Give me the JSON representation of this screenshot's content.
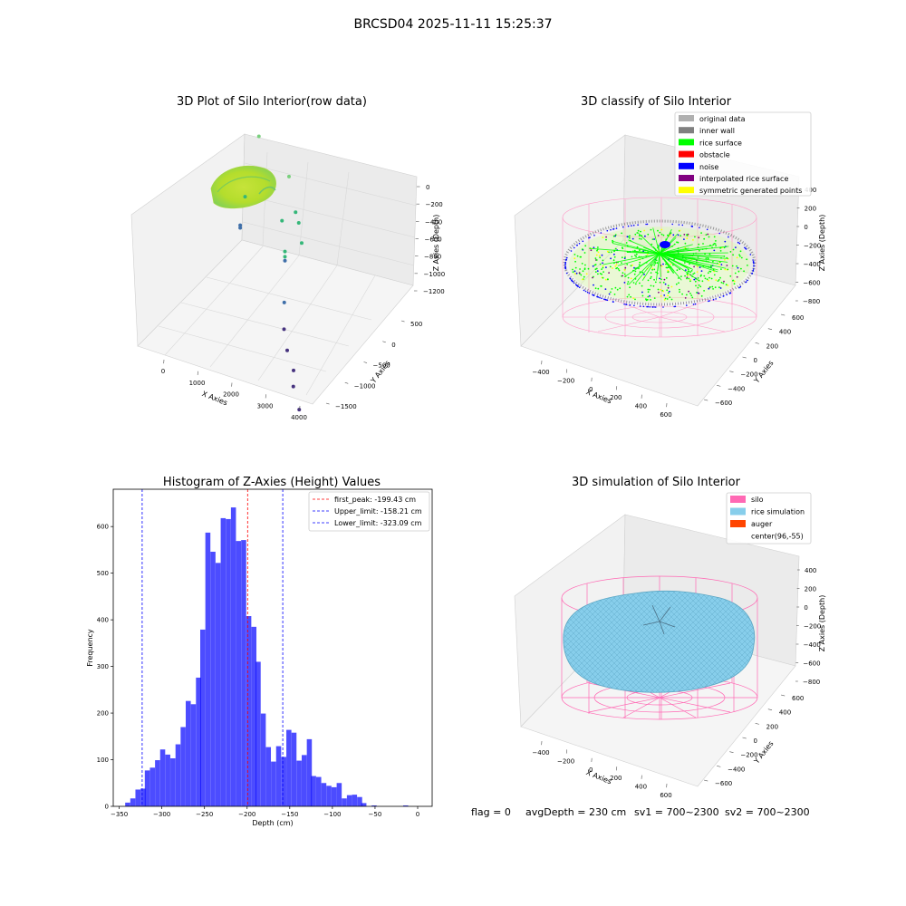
{
  "figure": {
    "suptitle": "BRCSD04 2025-11-11 15:25:37",
    "footer": {
      "flag": "flag = 0",
      "avg_depth": "avgDepth = 230 cm",
      "sv1": "sv1 = 700~2300",
      "sv2": "sv2 = 700~2300"
    }
  },
  "colors": {
    "hist_bar": "#0000ff",
    "peak_line": "#ff0000",
    "limit_line": "#0000ff",
    "silo_wire": "#ff69b4",
    "rice_sim": "#87ceeb",
    "auger": "#ff4500",
    "rice_surface": "#00ff00",
    "noise": "#0000ff",
    "inner_wall": "#808080",
    "original": "#b0b0b0",
    "interpolated": "#800080",
    "symmetric": "#ffff00"
  },
  "chart_data": [
    {
      "type": "scatter",
      "projection": "3d",
      "title": "3D Plot of Silo Interior(row data)",
      "xlabel": "X Axies",
      "ylabel": "Y Axies",
      "zlabel": "Z Axies (Depth)",
      "x_ticks": [
        "0",
        "1000",
        "2000",
        "3000",
        "4000"
      ],
      "y_ticks": [
        "500",
        "0",
        "−500",
        "−1000",
        "−1500"
      ],
      "z_ticks": [
        "0",
        "−200",
        "−400",
        "−600",
        "−800",
        "−1000",
        "−1200"
      ],
      "colormap": "viridis",
      "grid": true,
      "outliers": [
        {
          "x": 600,
          "y": 200,
          "z": -620
        },
        {
          "x": 350,
          "y": 300,
          "z": -900
        },
        {
          "x": 350,
          "y": 300,
          "z": -920
        },
        {
          "x": 900,
          "y": 300,
          "z": -180
        },
        {
          "x": 2000,
          "y": 100,
          "z": -300
        },
        {
          "x": 1900,
          "y": 0,
          "z": -600
        },
        {
          "x": 2300,
          "y": 0,
          "z": -500
        },
        {
          "x": 2500,
          "y": -100,
          "z": -520
        },
        {
          "x": 2200,
          "y": -200,
          "z": -720
        },
        {
          "x": 2200,
          "y": -200,
          "z": -760
        },
        {
          "x": 2200,
          "y": -200,
          "z": -790
        },
        {
          "x": 2800,
          "y": -300,
          "z": -560
        },
        {
          "x": 2500,
          "y": -500,
          "z": -950
        },
        {
          "x": 2600,
          "y": -600,
          "z": -1100
        },
        {
          "x": 2800,
          "y": -700,
          "z": -1200
        },
        {
          "x": 3200,
          "y": -900,
          "z": -1230
        },
        {
          "x": 3300,
          "y": -1000,
          "z": -1300
        },
        {
          "x": 3900,
          "y": -1400,
          "z": -1250
        }
      ]
    },
    {
      "type": "scatter",
      "projection": "3d",
      "title": "3D classify of Silo Interior",
      "xlabel": "X Axies",
      "ylabel": "Y Axies",
      "zlabel": "Z Axies (Depth)",
      "x_ticks": [
        "−400",
        "−200",
        "0",
        "200",
        "400",
        "600"
      ],
      "y_ticks": [
        "600",
        "400",
        "200",
        "0",
        "−200",
        "−400",
        "−600"
      ],
      "z_ticks": [
        "400",
        "200",
        "0",
        "−200",
        "−400",
        "−600",
        "−800"
      ],
      "legend_position": "upper right",
      "grid": true,
      "legend": [
        {
          "label": "original data",
          "color": "#b0b0b0"
        },
        {
          "label": "inner wall",
          "color": "#808080"
        },
        {
          "label": "rice surface",
          "color": "#00ff00"
        },
        {
          "label": "obstacle",
          "color": "#ff0000"
        },
        {
          "label": "noise",
          "color": "#0000ff"
        },
        {
          "label": "interpolated rice surface",
          "color": "#800080"
        },
        {
          "label": "symmetric generated points",
          "color": "#ffff00"
        }
      ]
    },
    {
      "type": "bar",
      "title": "Histogram of Z-Axies (Height) Values",
      "xlabel": "Depth (cm)",
      "ylabel": "Frequency",
      "xlim": [
        -357,
        17
      ],
      "ylim": [
        0,
        680
      ],
      "x_ticks": [
        "−350",
        "−300",
        "−250",
        "−200",
        "−150",
        "−100",
        "−50",
        "0"
      ],
      "y_ticks": [
        "0",
        "100",
        "200",
        "300",
        "400",
        "500",
        "600"
      ],
      "bin_width": 5.9,
      "bins": [
        {
          "x": -343,
          "y": 8
        },
        {
          "x": -337,
          "y": 17
        },
        {
          "x": -331,
          "y": 36
        },
        {
          "x": -325,
          "y": 38
        },
        {
          "x": -320,
          "y": 77
        },
        {
          "x": -314,
          "y": 83
        },
        {
          "x": -308,
          "y": 99
        },
        {
          "x": -302,
          "y": 122
        },
        {
          "x": -296,
          "y": 111
        },
        {
          "x": -290,
          "y": 103
        },
        {
          "x": -284,
          "y": 133
        },
        {
          "x": -278,
          "y": 170
        },
        {
          "x": -272,
          "y": 226
        },
        {
          "x": -266,
          "y": 219
        },
        {
          "x": -260,
          "y": 276
        },
        {
          "x": -255,
          "y": 379
        },
        {
          "x": -249,
          "y": 587
        },
        {
          "x": -243,
          "y": 546
        },
        {
          "x": -237,
          "y": 522
        },
        {
          "x": -231,
          "y": 618
        },
        {
          "x": -225,
          "y": 616
        },
        {
          "x": -219,
          "y": 641
        },
        {
          "x": -213,
          "y": 569
        },
        {
          "x": -207,
          "y": 571
        },
        {
          "x": -201,
          "y": 408
        },
        {
          "x": -195,
          "y": 385
        },
        {
          "x": -190,
          "y": 310
        },
        {
          "x": -184,
          "y": 199
        },
        {
          "x": -178,
          "y": 127
        },
        {
          "x": -172,
          "y": 96
        },
        {
          "x": -166,
          "y": 129
        },
        {
          "x": -160,
          "y": 106
        },
        {
          "x": -154,
          "y": 164
        },
        {
          "x": -148,
          "y": 158
        },
        {
          "x": -142,
          "y": 98
        },
        {
          "x": -136,
          "y": 110
        },
        {
          "x": -130,
          "y": 144
        },
        {
          "x": -125,
          "y": 65
        },
        {
          "x": -119,
          "y": 63
        },
        {
          "x": -113,
          "y": 50
        },
        {
          "x": -107,
          "y": 44
        },
        {
          "x": -101,
          "y": 41
        },
        {
          "x": -95,
          "y": 50
        },
        {
          "x": -89,
          "y": 17
        },
        {
          "x": -83,
          "y": 24
        },
        {
          "x": -77,
          "y": 25
        },
        {
          "x": -71,
          "y": 20
        },
        {
          "x": -66,
          "y": 7
        },
        {
          "x": -54,
          "y": 2
        },
        {
          "x": -17,
          "y": 2
        }
      ],
      "vlines": [
        {
          "label": "first_peak: -199.43 cm",
          "x": -199.43,
          "color": "#ff0000"
        },
        {
          "label": "Upper_limit: -158.21 cm",
          "x": -158.21,
          "color": "#0000ff"
        },
        {
          "label": "Lower_limit: -323.09 cm",
          "x": -323.09,
          "color": "#0000ff"
        }
      ],
      "legend_position": "upper right"
    },
    {
      "type": "surface",
      "projection": "3d",
      "title": "3D simulation of Silo Interior",
      "xlabel": "X Axies",
      "ylabel": "Y Axies",
      "zlabel": "Z Axies (Depth)",
      "x_ticks": [
        "−400",
        "−200",
        "0",
        "200",
        "400",
        "600"
      ],
      "y_ticks": [
        "600",
        "400",
        "200",
        "0",
        "−200",
        "−400",
        "−600"
      ],
      "z_ticks": [
        "400",
        "200",
        "0",
        "−200",
        "−400",
        "−600",
        "−800"
      ],
      "legend_position": "upper right",
      "grid": true,
      "legend": [
        {
          "label": "silo",
          "color": "#ff69b4"
        },
        {
          "label": "rice simulation",
          "color": "#87ceeb"
        },
        {
          "label": "auger",
          "color": "#ff4500"
        },
        {
          "label": "center(96,-55)",
          "color": "#ffffff"
        }
      ]
    }
  ]
}
